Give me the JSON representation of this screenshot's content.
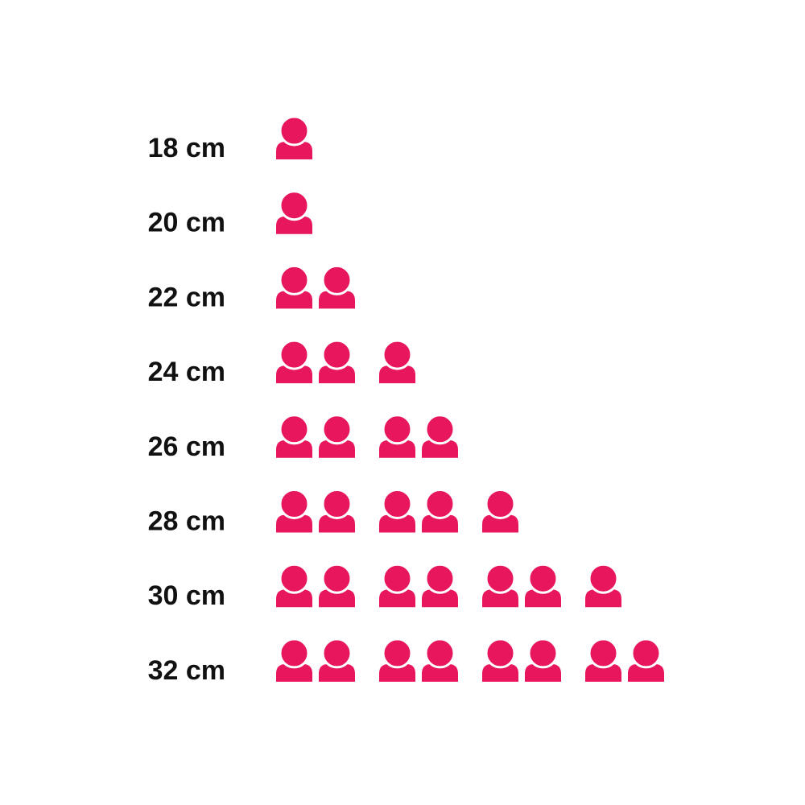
{
  "chart_data": {
    "type": "pictogram",
    "categories": [
      "18 cm",
      "20 cm",
      "22 cm",
      "24 cm",
      "26 cm",
      "28 cm",
      "30 cm",
      "32 cm"
    ],
    "values": [
      1,
      1,
      2,
      3,
      4,
      5,
      7,
      8
    ],
    "color": "#e8175d"
  }
}
